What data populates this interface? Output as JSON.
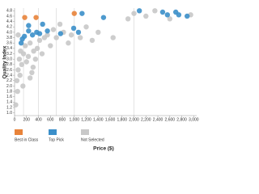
{
  "chart_data": {
    "type": "scatter",
    "x_label": "Price ($)",
    "y_label": "Quality Index",
    "xlim": [
      0,
      3050
    ],
    "ylim": [
      0.9,
      4.9
    ],
    "xticks": [
      0,
      200,
      400,
      600,
      800,
      {
        "value": 1000,
        "label": "1,000"
      },
      {
        "value": 1200,
        "label": "1,200"
      },
      {
        "value": 1400,
        "label": "1,400"
      },
      {
        "value": 1600,
        "label": "1,600"
      },
      {
        "value": 1800,
        "label": "1,800"
      },
      {
        "value": 2000,
        "label": "2,000"
      },
      {
        "value": 2200,
        "label": "2,200"
      },
      {
        "value": 2400,
        "label": "2,400"
      },
      {
        "value": 2600,
        "label": "2,600"
      },
      {
        "value": 2800,
        "label": "2,800"
      },
      {
        "value": 3000,
        "label": "3,000"
      }
    ],
    "yticks": [
      {
        "value": 1,
        "label": "1.0"
      },
      1.2,
      1.4,
      1.6,
      1.8,
      {
        "value": 2,
        "label": "2.0"
      },
      2.2,
      2.4,
      2.6,
      2.8,
      {
        "value": 3,
        "label": "3.0"
      },
      3.2,
      3.4,
      3.6,
      3.8,
      {
        "value": 4,
        "label": "4.0"
      },
      4.2,
      4.4,
      4.6,
      4.8
    ],
    "reference_lines": [
      150,
      400,
      700,
      1000,
      2000
    ],
    "legend": "bottom-left",
    "series": [
      {
        "name": "Best in Class",
        "color": "#e8833a",
        "x": [
          170,
          360,
          1000
        ],
        "values": [
          4.55,
          4.55,
          4.7
        ]
      },
      {
        "name": "Top Pick",
        "color": "#3b8fc9",
        "x": [
          1130,
          1490,
          2090,
          2480,
          2700,
          2890,
          110,
          165,
          235,
          300,
          370,
          235,
          470,
          550,
          770,
          990,
          1070,
          2560,
          2750,
          130,
          420
        ],
        "values": [
          4.7,
          4.55,
          4.8,
          4.75,
          4.75,
          4.6,
          3.6,
          3.85,
          4.05,
          3.9,
          4.0,
          4.25,
          4.3,
          4.05,
          3.95,
          4.15,
          4.0,
          4.65,
          4.65,
          3.75,
          3.95
        ]
      },
      {
        "name": "Not Selected",
        "color": "#c8c8c8",
        "x": [
          20,
          40,
          60,
          80,
          100,
          120,
          150,
          180,
          200,
          230,
          260,
          290,
          320,
          350,
          380,
          420,
          460,
          500,
          550,
          600,
          650,
          700,
          760,
          820,
          900,
          950,
          1100,
          1200,
          1300,
          1400,
          1650,
          1900,
          2000,
          2200,
          2350,
          2600,
          2950,
          50,
          90,
          140,
          260,
          310,
          60
        ],
        "values": [
          1.3,
          2.2,
          2.6,
          3.0,
          3.3,
          2.8,
          3.2,
          3.5,
          2.9,
          3.1,
          3.6,
          2.5,
          3.3,
          3.0,
          3.4,
          3.7,
          3.2,
          3.8,
          3.9,
          3.5,
          4.1,
          3.8,
          4.3,
          4.0,
          3.6,
          3.9,
          3.8,
          4.2,
          3.7,
          4.0,
          3.8,
          4.5,
          4.7,
          4.6,
          4.8,
          4.5,
          4.65,
          1.8,
          2.4,
          2.0,
          2.3,
          2.7,
          3.9
        ]
      }
    ]
  }
}
